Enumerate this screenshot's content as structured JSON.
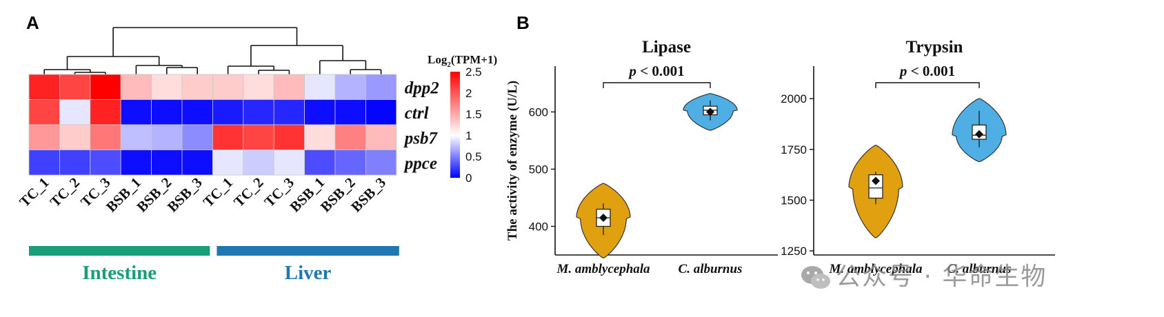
{
  "panels": {
    "a": "A",
    "b": "B"
  },
  "watermark": "公众号 · 华命生物",
  "chart_data": [
    {
      "type": "heatmap",
      "panel": "A",
      "columns": [
        "TC_1",
        "TC_2",
        "TC_3",
        "BSB_1",
        "BSB_2",
        "BSB_3",
        "TC_1",
        "TC_2",
        "TC_3",
        "BSB_1",
        "BSB_2",
        "BSB_3"
      ],
      "rows": [
        "dpp2",
        "ctrl",
        "psb7",
        "ppce"
      ],
      "values": [
        [
          2.3,
          2.1,
          2.5,
          1.4,
          1.2,
          1.3,
          1.3,
          1.2,
          1.4,
          0.9,
          0.7,
          0.6
        ],
        [
          2.1,
          0.9,
          2.3,
          0.05,
          0.05,
          0.05,
          0.1,
          0.15,
          0.15,
          0.05,
          0.05,
          0.02
        ],
        [
          1.6,
          1.3,
          1.8,
          0.75,
          0.7,
          0.55,
          2.2,
          2.1,
          2.2,
          1.2,
          1.75,
          1.4
        ],
        [
          0.25,
          0.25,
          0.3,
          0.05,
          0.05,
          0.05,
          0.9,
          0.8,
          0.9,
          0.3,
          0.4,
          0.5
        ]
      ],
      "legend": {
        "title_main": "Log",
        "title_sub": "2",
        "title_rest": "(TPM+1)",
        "ticks": [
          "2.5",
          "2",
          "1.5",
          "1",
          "0.5",
          "0"
        ],
        "range": [
          0,
          2.5
        ]
      },
      "groups": [
        {
          "label": "Intestine",
          "color": "#1a9e7a"
        },
        {
          "label": "Liver",
          "color": "#1f78b4"
        }
      ],
      "color_scale": {
        "low": "#0000ff",
        "mid": "#ffffff",
        "high": "#ff0000"
      }
    },
    {
      "type": "violin",
      "panel": "B",
      "title": "Lipase",
      "ylabel": "The activity of enzyme (U/L)",
      "ylim": [
        350,
        680
      ],
      "yticks": [
        400,
        500,
        600
      ],
      "categories": [
        "M. amblycephala",
        "C. alburnus"
      ],
      "colors": [
        "#e0a010",
        "#4faee3"
      ],
      "groups": [
        {
          "name": "M. amblycephala",
          "mean": 415,
          "median": 415,
          "q1": 400,
          "q3": 430,
          "min": 385,
          "max": 440,
          "violin_min": 345,
          "violin_max": 475
        },
        {
          "name": "C. alburnus",
          "mean": 600,
          "median": 603,
          "q1": 595,
          "q3": 610,
          "min": 585,
          "max": 620,
          "violin_min": 568,
          "violin_max": 632
        }
      ],
      "significance": "p < 0.001"
    },
    {
      "type": "violin",
      "panel": "B",
      "title": "Trypsin",
      "ylabel": "",
      "ylim": [
        1230,
        2160
      ],
      "yticks": [
        1250,
        1500,
        1750,
        2000
      ],
      "categories": [
        "M. amblycephala",
        "C. alburnus"
      ],
      "colors": [
        "#e0a010",
        "#4faee3"
      ],
      "groups": [
        {
          "name": "M. amblycephala",
          "mean": 1595,
          "median": 1560,
          "q1": 1510,
          "q3": 1625,
          "min": 1480,
          "max": 1640,
          "violin_min": 1315,
          "violin_max": 1770
        },
        {
          "name": "C. alburnus",
          "mean": 1825,
          "median": 1820,
          "q1": 1800,
          "q3": 1870,
          "min": 1760,
          "max": 1940,
          "violin_min": 1690,
          "violin_max": 2000
        }
      ],
      "significance": "p < 0.001"
    }
  ]
}
